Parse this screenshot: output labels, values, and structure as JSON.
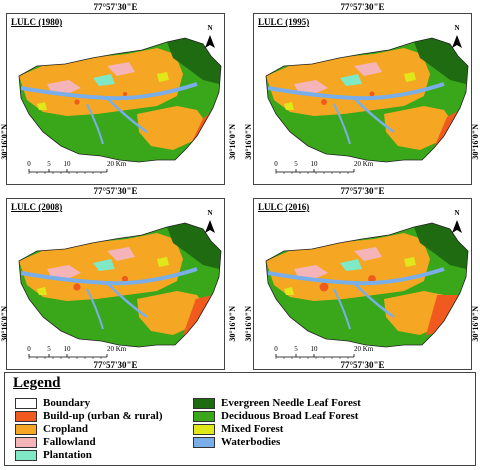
{
  "maps": [
    {
      "title": "LULC (1980)",
      "coord_top": "77°57'30\"E",
      "coord_bottom": "77°57'30\"E",
      "coord_side": "30°16'0\"N",
      "scale_labels": [
        "0",
        "5",
        "10",
        "20 Km"
      ],
      "north": "N",
      "year": "1980"
    },
    {
      "title": "LULC (1995)",
      "coord_top": "77°57'30\"E",
      "coord_bottom": "77°57'30\"E",
      "coord_side": "30°16'0\"N",
      "scale_labels": [
        "0",
        "5",
        "10",
        "20 Km"
      ],
      "north": "N",
      "year": "1995"
    },
    {
      "title": "LULC (2008)",
      "coord_top": "77°57'30\"E",
      "coord_bottom": "77°57'30\"E",
      "coord_side": "30°16'0\"N",
      "scale_labels": [
        "0",
        "5",
        "10",
        "20 Km"
      ],
      "north": "N",
      "year": "2008"
    },
    {
      "title": "LULC (2016)",
      "coord_top": "77°57'30\"E",
      "coord_bottom": "77°57'30\"E",
      "coord_side": "30°16'0\"N",
      "scale_labels": [
        "0",
        "5",
        "10",
        "20 Km"
      ],
      "north": "N",
      "year": "2016"
    }
  ],
  "legend": {
    "title": "Legend",
    "items": [
      {
        "label": "Boundary",
        "color": "#ffffff"
      },
      {
        "label": "Build-up (urban & rural)",
        "color": "#f05a1e"
      },
      {
        "label": "Cropland",
        "color": "#f5a623"
      },
      {
        "label": "Fallowland",
        "color": "#f4b4b8"
      },
      {
        "label": "Plantation",
        "color": "#7fe8c4"
      },
      {
        "label": "Evergreen Needle Leaf Forest",
        "color": "#1f6b12"
      },
      {
        "label": "Deciduous Broad Leaf Forest",
        "color": "#3aa61a"
      },
      {
        "label": "Mixed Forest",
        "color": "#e0e81a"
      },
      {
        "label": "Waterbodies",
        "color": "#7aaee8"
      }
    ]
  }
}
